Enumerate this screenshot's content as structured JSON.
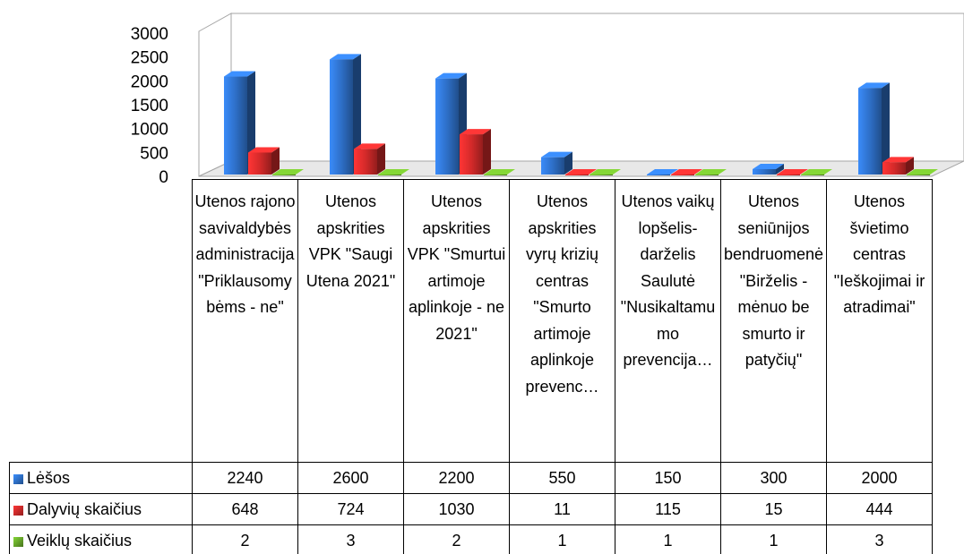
{
  "chart_data": {
    "type": "bar3d",
    "categories": [
      "Utenos rajono savivaldybės administracija \"Priklausomybėms - ne\"",
      "Utenos apskrities VPK \"Saugi Utena 2021\"",
      "Utenos apskrities VPK \"Smurtui artimoje aplinkoje - ne 2021\"",
      "Utenos apskrities vyrų krizių centras \"Smurto artimoje aplinkoje prevenc…",
      "Utenos vaikų lopšelis-darželis Saulutė \"Nusikaltamumo prevencija…",
      "Utenos seniūnijos bendruomenė \"Birželis - mėnuo be smurto ir patyčių\"",
      "Utenos švietimo centras \"Ieškojimai ir atradimai\""
    ],
    "series": [
      {
        "name": "Lėšos",
        "color": "#2e6fc7",
        "values": [
          2240,
          2600,
          2200,
          550,
          150,
          300,
          2000
        ]
      },
      {
        "name": "Dalyvių skaičius",
        "color": "#d42a2a",
        "values": [
          648,
          724,
          1030,
          11,
          115,
          15,
          444
        ]
      },
      {
        "name": "Veiklų skaičius",
        "color": "#66a52a",
        "values": [
          2,
          3,
          2,
          1,
          1,
          1,
          3
        ]
      }
    ],
    "ylim": [
      0,
      3000
    ],
    "yticks": [
      0,
      500,
      1000,
      1500,
      2000,
      2500,
      3000
    ]
  }
}
